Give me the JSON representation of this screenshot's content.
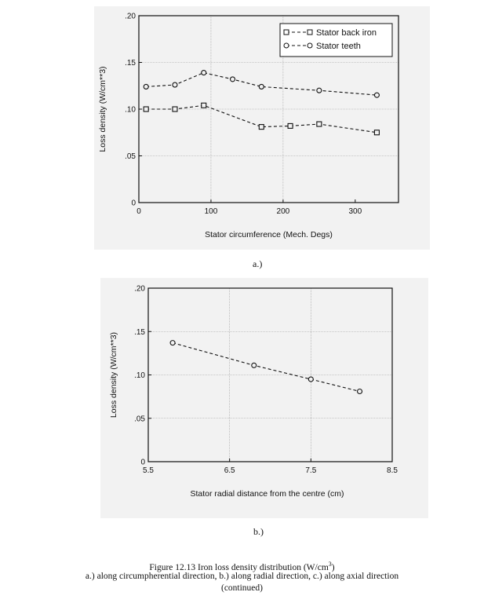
{
  "chart_data": [
    {
      "type": "line",
      "panel_label": "a.)",
      "xlabel": "Stator circumference (Mech. Degs)",
      "ylabel": "Loss density (W/cm**3)",
      "xlim": [
        0,
        360
      ],
      "ylim": [
        0,
        0.2
      ],
      "x_ticks": [
        0,
        100,
        200,
        300
      ],
      "x_tick_labels": [
        "0",
        "100",
        "200",
        "300"
      ],
      "y_ticks": [
        0,
        0.05,
        0.1,
        0.15,
        0.2
      ],
      "y_tick_labels": [
        "0",
        ".05",
        ".10",
        ".15",
        ".20"
      ],
      "grid": true,
      "legend_position": "top-right",
      "series": [
        {
          "name": "Stator back iron",
          "marker": "square",
          "line": "dashed",
          "x": [
            10,
            50,
            90,
            170,
            210,
            250,
            330
          ],
          "y": [
            0.1,
            0.1,
            0.104,
            0.081,
            0.082,
            0.084,
            0.075
          ]
        },
        {
          "name": "Stator teeth",
          "marker": "circle",
          "line": "dashed",
          "x": [
            10,
            50,
            90,
            130,
            170,
            250,
            330
          ],
          "y": [
            0.124,
            0.126,
            0.139,
            0.132,
            0.124,
            0.12,
            0.115
          ]
        }
      ]
    },
    {
      "type": "line",
      "panel_label": "b.)",
      "xlabel": "Stator radial distance from the centre (cm)",
      "ylabel": "Loss density (W/cm**3)",
      "xlim": [
        5.5,
        8.5
      ],
      "ylim": [
        0,
        0.2
      ],
      "x_ticks": [
        5.5,
        6.5,
        7.5,
        8.5
      ],
      "x_tick_labels": [
        "5.5",
        "6.5",
        "7.5",
        "8.5"
      ],
      "y_ticks": [
        0,
        0.05,
        0.1,
        0.15,
        0.2
      ],
      "y_tick_labels": [
        "0",
        ".05",
        ".10",
        ".15",
        ".20"
      ],
      "grid": true,
      "series": [
        {
          "name": "",
          "marker": "circle",
          "line": "dashed",
          "x": [
            5.8,
            6.8,
            7.5,
            8.1
          ],
          "y": [
            0.137,
            0.111,
            0.095,
            0.081
          ]
        }
      ]
    }
  ],
  "caption": {
    "line1": "Figure 12.13 Iron loss density distribution (W/cm",
    "line1_sup": "3",
    "line1_end": ")",
    "line2": "a.) along circumpherential direction, b.) along radial direction, c.) along axial direction",
    "line3": "(continued)"
  },
  "colors": {
    "panel_bg": "#f2f2f2",
    "ink": "#111111",
    "grid": "#9a9a9a"
  }
}
